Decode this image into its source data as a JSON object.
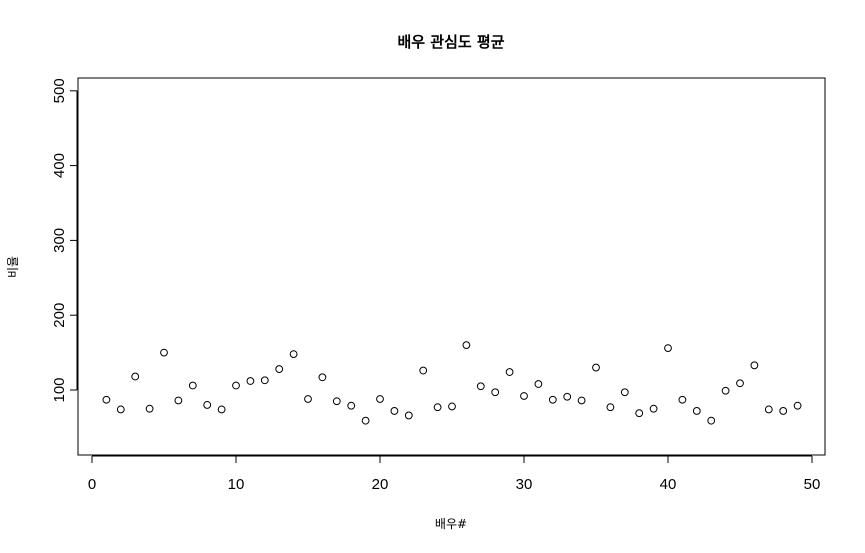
{
  "chart_data": {
    "type": "scatter",
    "title": "배우 관심도 평균",
    "xlabel": "배우#",
    "ylabel": "비율",
    "xlim": [
      0,
      50
    ],
    "ylim": [
      50,
      520
    ],
    "x_ticks": [
      0,
      10,
      20,
      30,
      40,
      50
    ],
    "y_ticks": [
      100,
      200,
      300,
      400,
      500
    ],
    "x_tick_labels": [
      "0",
      "10",
      "20",
      "30",
      "40",
      "50"
    ],
    "y_tick_labels": [
      "100",
      "200",
      "300",
      "400",
      "500"
    ],
    "grid": false,
    "marker": "open-circle",
    "x": [
      1,
      2,
      3,
      4,
      5,
      6,
      7,
      8,
      9,
      10,
      11,
      12,
      13,
      14,
      15,
      16,
      17,
      18,
      19,
      20,
      21,
      22,
      23,
      24,
      25,
      26,
      27,
      28,
      29,
      30,
      31,
      32,
      33,
      34,
      35,
      36,
      37,
      38,
      39,
      40,
      41,
      42,
      43,
      44,
      45,
      46,
      47,
      48,
      49
    ],
    "y": [
      87,
      74,
      118,
      75,
      150,
      86,
      106,
      80,
      74,
      106,
      112,
      113,
      128,
      148,
      88,
      117,
      85,
      79,
      59,
      88,
      72,
      66,
      126,
      77,
      78,
      160,
      105,
      97,
      124,
      92,
      108,
      87,
      91,
      86,
      130,
      77,
      97,
      69,
      75,
      156,
      87,
      72,
      59,
      99,
      109,
      133,
      74,
      72,
      79
    ]
  }
}
